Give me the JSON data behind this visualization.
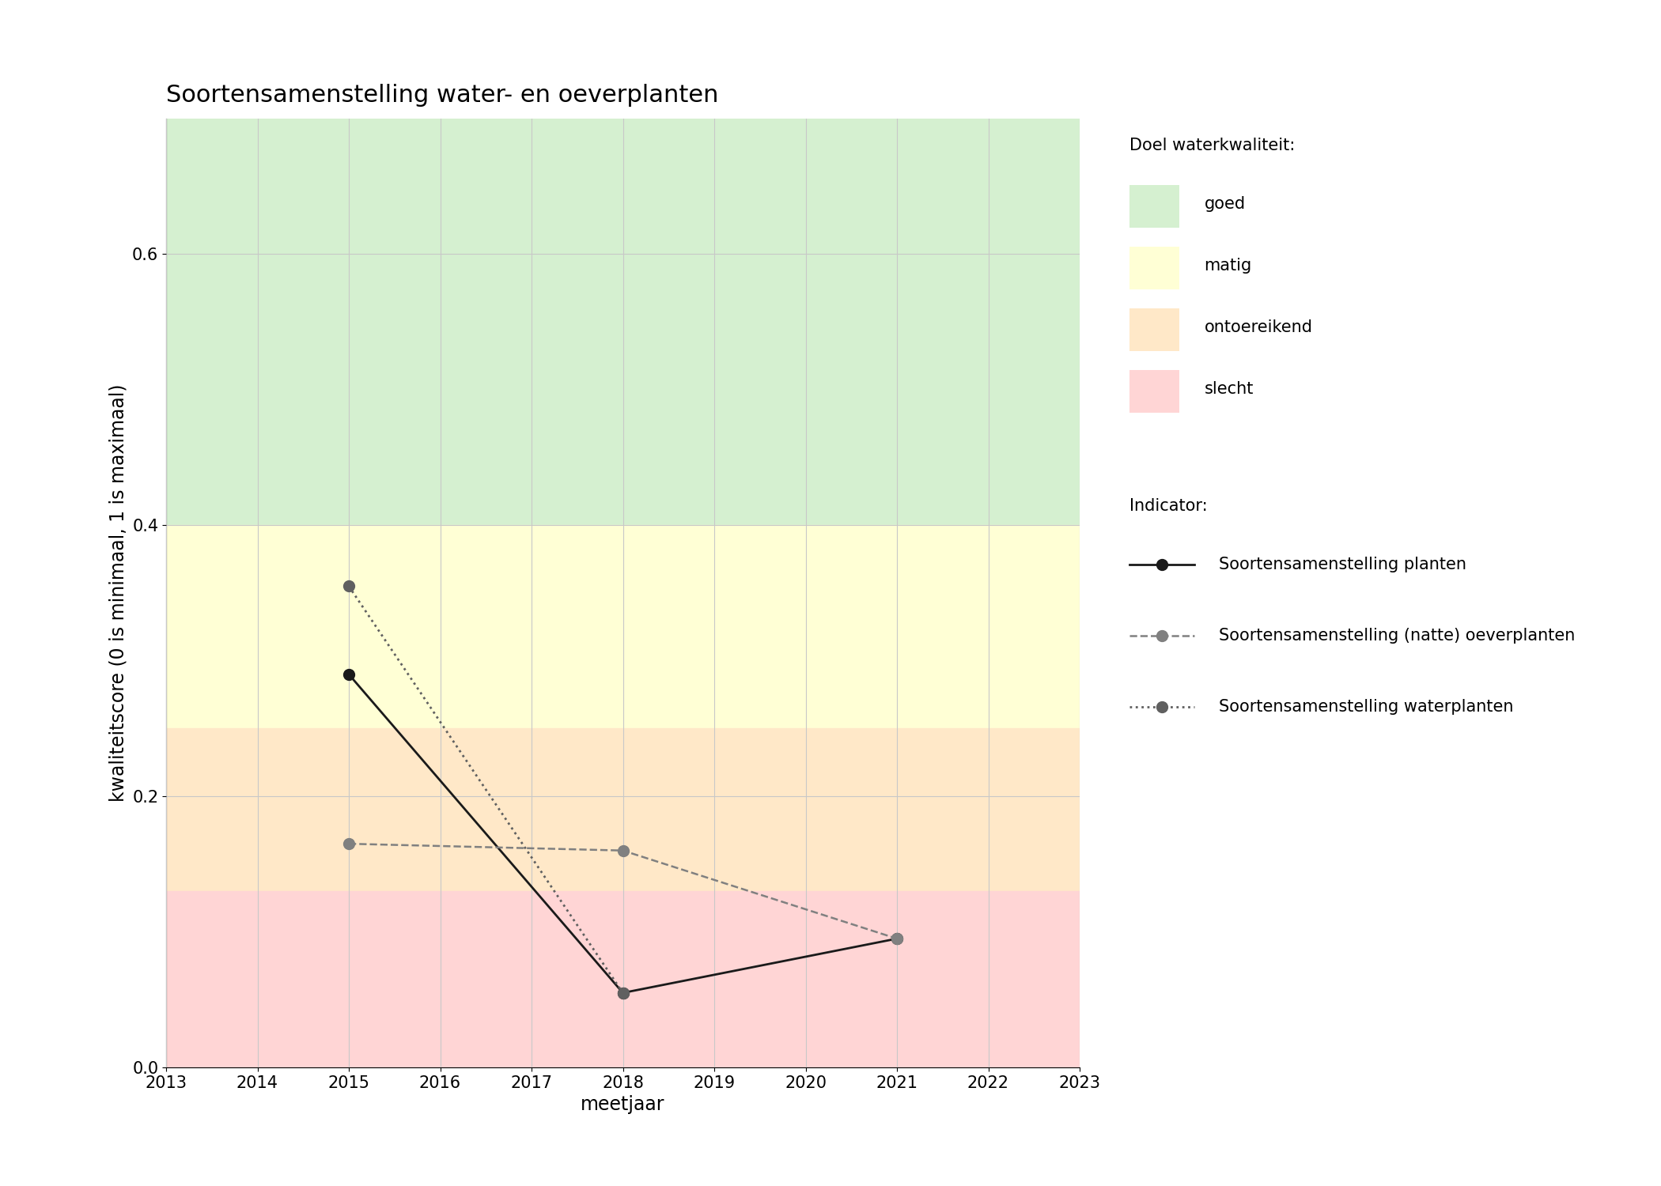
{
  "title": "Soortensamenstelling water- en oeverplanten",
  "xlabel": "meetjaar",
  "ylabel": "kwaliteitscore (0 is minimaal, 1 is maximaal)",
  "xlim": [
    2013,
    2023
  ],
  "ylim": [
    0,
    0.7
  ],
  "yticks": [
    0.0,
    0.2,
    0.4,
    0.6
  ],
  "xticks": [
    2013,
    2014,
    2015,
    2016,
    2017,
    2018,
    2019,
    2020,
    2021,
    2022,
    2023
  ],
  "zones": [
    {
      "name": "goed",
      "ymin": 0.4,
      "ymax": 0.7,
      "color": "#d5f0d0"
    },
    {
      "name": "matig",
      "ymin": 0.25,
      "ymax": 0.4,
      "color": "#ffffd5"
    },
    {
      "name": "ontoereikend",
      "ymin": 0.13,
      "ymax": 0.25,
      "color": "#ffe8c8"
    },
    {
      "name": "slecht",
      "ymin": 0.0,
      "ymax": 0.13,
      "color": "#ffd5d5"
    }
  ],
  "series": [
    {
      "key": "planten",
      "years": [
        2015,
        2018,
        2021
      ],
      "values": [
        0.29,
        0.055,
        0.095
      ],
      "color": "#1a1a1a",
      "linestyle": "-",
      "linewidth": 2.0,
      "markersize": 10,
      "label": "Soortensamenstelling planten"
    },
    {
      "key": "oeverplanten",
      "years": [
        2015,
        2018,
        2021
      ],
      "values": [
        0.165,
        0.16,
        0.095
      ],
      "color": "#808080",
      "linestyle": "--",
      "linewidth": 1.8,
      "markersize": 10,
      "label": "Soortensamenstelling (natte) oeverplanten"
    },
    {
      "key": "waterplanten",
      "years": [
        2015,
        2018
      ],
      "values": [
        0.355,
        0.055
      ],
      "color": "#606060",
      "linestyle": ":",
      "linewidth": 2.0,
      "markersize": 10,
      "label": "Soortensamenstelling waterplanten"
    }
  ],
  "legend_title_doel": "Doel waterkwaliteit:",
  "legend_title_indicator": "Indicator:",
  "legend_doel_labels": [
    "goed",
    "matig",
    "ontoereikend",
    "slecht"
  ],
  "legend_doel_colors": [
    "#d5f0d0",
    "#ffffd5",
    "#ffe8c8",
    "#ffd5d5"
  ],
  "background_color": "#ffffff",
  "grid_color": "#c8c8c8",
  "title_fontsize": 22,
  "label_fontsize": 17,
  "tick_fontsize": 15,
  "legend_fontsize": 15
}
